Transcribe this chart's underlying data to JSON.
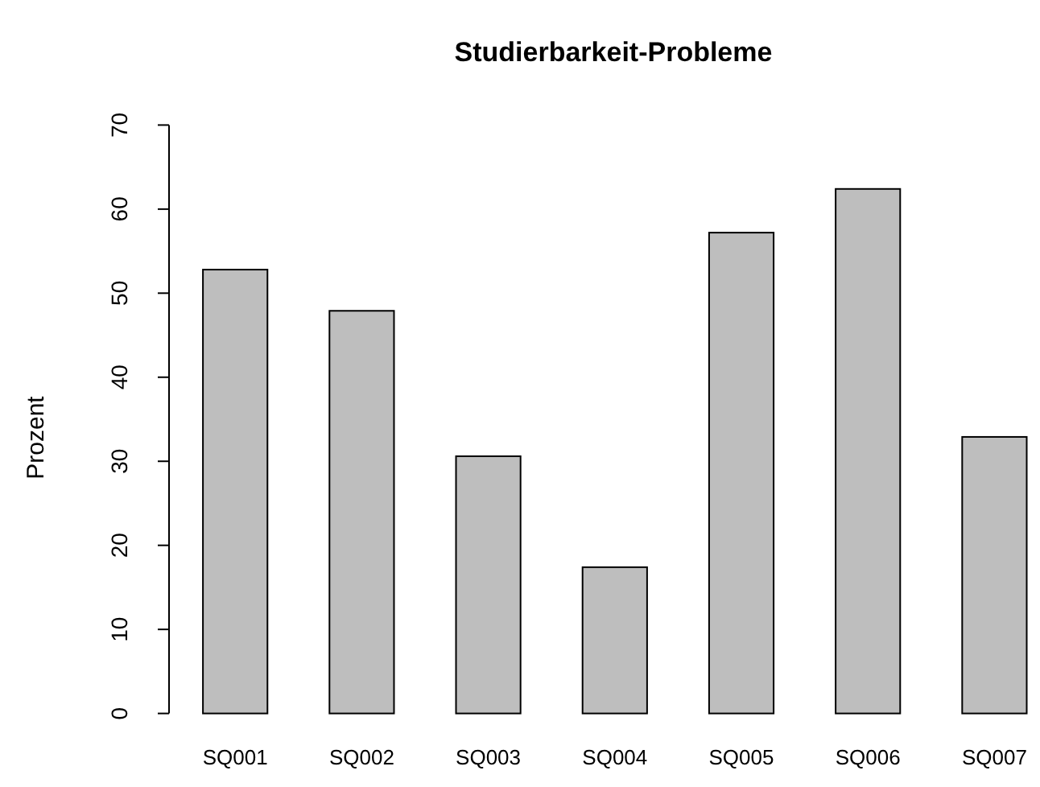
{
  "chart_data": {
    "type": "bar",
    "title": "Studierbarkeit-Probleme",
    "ylabel": "Prozent",
    "categories": [
      "SQ001",
      "SQ002",
      "SQ003",
      "SQ004",
      "SQ005",
      "SQ006",
      "SQ007"
    ],
    "values": [
      52.8,
      47.9,
      30.6,
      17.4,
      57.2,
      62.4,
      32.9
    ],
    "color": "#bebebe",
    "ylim": [
      0,
      70
    ],
    "yticks": [
      0,
      10,
      20,
      30,
      40,
      50,
      60,
      70
    ],
    "grid": false
  }
}
